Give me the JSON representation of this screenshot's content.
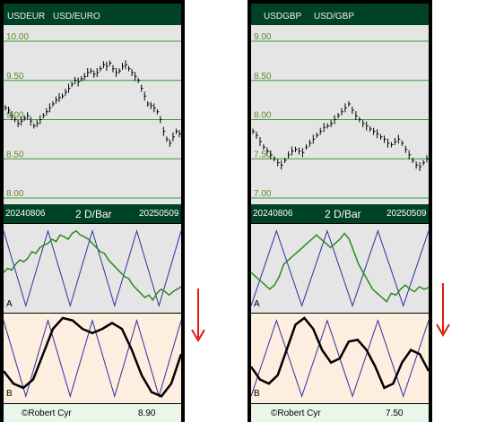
{
  "panels": [
    {
      "symbol": "USDEUR",
      "name": "USD/EURO",
      "date_start": "20240806",
      "interval": "2 D/Bar",
      "date_end": "20250509",
      "osc_a_label": "A",
      "osc_b_label": "B",
      "copyright": "©Robert Cyr",
      "footer_value": "8.90",
      "signal": "down"
    },
    {
      "symbol": "USDGBP",
      "name": "USD/GBP",
      "date_start": "20240806",
      "interval": "2 D/Bar",
      "date_end": "20250509",
      "osc_a_label": "A",
      "osc_b_label": "B",
      "copyright": "©Robert Cyr",
      "footer_value": "7.50",
      "signal": "down"
    }
  ],
  "colors": {
    "header_bg": "#004225",
    "gridline": "#3a9a3a",
    "price_bars": "#000000",
    "osc_line": "#2a8a1a",
    "cycle_line": "#3030a0",
    "arrow": "#dd1a10"
  },
  "chart_data": [
    {
      "type": "line",
      "title": "USDEUR USD/EURO",
      "x_range": [
        "20240806",
        "20250509"
      ],
      "ylim": [
        8.0,
        10.0
      ],
      "ytick_labels": [
        "10.00",
        "9.50",
        "9.00",
        "8.50",
        "8.00"
      ],
      "ticks": [
        10.0,
        9.5,
        9.0,
        8.5,
        8.0
      ],
      "series": [
        {
          "values": [
            9.15,
            9.12,
            9.05,
            9.0,
            8.95,
            8.98,
            9.02,
            9.05,
            8.98,
            8.92,
            8.95,
            9.0,
            9.05,
            9.1,
            9.15,
            9.2,
            9.25,
            9.28,
            9.3,
            9.35,
            9.4,
            9.45,
            9.5,
            9.48,
            9.52,
            9.55,
            9.6,
            9.62,
            9.58,
            9.6,
            9.65,
            9.7,
            9.68,
            9.72,
            9.65,
            9.6,
            9.62,
            9.68,
            9.7,
            9.65,
            9.6,
            9.55,
            9.5,
            9.4,
            9.3,
            9.2,
            9.18,
            9.15,
            9.1,
            9.0,
            8.85,
            8.75,
            8.7,
            8.78,
            8.85,
            8.82
          ]
        }
      ]
    },
    {
      "type": "line",
      "title": "USDGBP USD/GBP",
      "x_range": [
        "20240806",
        "20250509"
      ],
      "ylim": [
        7.0,
        9.0
      ],
      "ytick_labels": [
        "9.00",
        "8.50",
        "8.00",
        "7.50",
        "7.00"
      ],
      "ticks": [
        9.0,
        8.5,
        8.0,
        7.5,
        7.0
      ],
      "series": [
        {
          "values": [
            7.85,
            7.8,
            7.72,
            7.65,
            7.6,
            7.55,
            7.5,
            7.45,
            7.42,
            7.48,
            7.55,
            7.6,
            7.62,
            7.6,
            7.58,
            7.65,
            7.7,
            7.75,
            7.8,
            7.85,
            7.9,
            7.92,
            7.95,
            8.0,
            8.05,
            8.1,
            8.15,
            8.2,
            8.12,
            8.05,
            8.0,
            7.95,
            7.92,
            7.88,
            7.85,
            7.82,
            7.78,
            7.75,
            7.7,
            7.68,
            7.72,
            7.75,
            7.7,
            7.62,
            7.55,
            7.48,
            7.42,
            7.4,
            7.45,
            7.5
          ]
        }
      ]
    },
    {
      "type": "line",
      "title": "USDEUR oscillator A",
      "ylim": [
        0,
        1
      ],
      "series": [
        {
          "values": [
            0.45,
            0.5,
            0.48,
            0.55,
            0.6,
            0.58,
            0.62,
            0.7,
            0.68,
            0.75,
            0.78,
            0.8,
            0.85,
            0.82,
            0.9,
            0.88,
            0.85,
            0.92,
            0.95,
            0.9,
            0.88,
            0.85,
            0.8,
            0.75,
            0.7,
            0.68,
            0.6,
            0.55,
            0.5,
            0.45,
            0.4,
            0.38,
            0.3,
            0.25,
            0.2,
            0.15,
            0.18,
            0.12,
            0.2,
            0.25,
            0.22,
            0.18,
            0.22,
            0.25,
            0.28
          ]
        },
        {
          "values": [
            0.95,
            0.05,
            0.95,
            0.05,
            0.95,
            0.05,
            0.95,
            0.05,
            0.95
          ]
        }
      ]
    },
    {
      "type": "line",
      "title": "USDEUR oscillator B",
      "ylim": [
        0,
        1
      ],
      "series": [
        {
          "values": [
            0.35,
            0.2,
            0.15,
            0.25,
            0.55,
            0.85,
            0.98,
            0.95,
            0.85,
            0.8,
            0.85,
            0.92,
            0.85,
            0.6,
            0.3,
            0.1,
            0.05,
            0.2,
            0.55
          ]
        },
        {
          "values": [
            0.95,
            0.05,
            0.95,
            0.05,
            0.95,
            0.05,
            0.95,
            0.05,
            0.95
          ]
        }
      ]
    },
    {
      "type": "line",
      "title": "USDGBP oscillator A",
      "ylim": [
        0,
        1
      ],
      "series": [
        {
          "values": [
            0.45,
            0.4,
            0.35,
            0.3,
            0.25,
            0.3,
            0.4,
            0.55,
            0.6,
            0.65,
            0.7,
            0.75,
            0.8,
            0.85,
            0.9,
            0.85,
            0.8,
            0.75,
            0.8,
            0.85,
            0.92,
            0.85,
            0.7,
            0.55,
            0.45,
            0.35,
            0.25,
            0.2,
            0.15,
            0.1,
            0.2,
            0.18,
            0.25,
            0.3,
            0.25,
            0.22,
            0.28,
            0.25,
            0.27
          ]
        },
        {
          "values": [
            0.05,
            0.95,
            0.05,
            0.95,
            0.05,
            0.95,
            0.05,
            0.95
          ]
        }
      ]
    },
    {
      "type": "line",
      "title": "USDGBP oscillator B",
      "ylim": [
        0,
        1
      ],
      "series": [
        {
          "values": [
            0.4,
            0.25,
            0.2,
            0.3,
            0.6,
            0.9,
            0.98,
            0.85,
            0.6,
            0.45,
            0.5,
            0.7,
            0.72,
            0.6,
            0.4,
            0.15,
            0.2,
            0.45,
            0.6,
            0.55,
            0.35
          ]
        },
        {
          "values": [
            0.05,
            0.95,
            0.05,
            0.95,
            0.05,
            0.95,
            0.05,
            0.95
          ]
        }
      ]
    }
  ]
}
